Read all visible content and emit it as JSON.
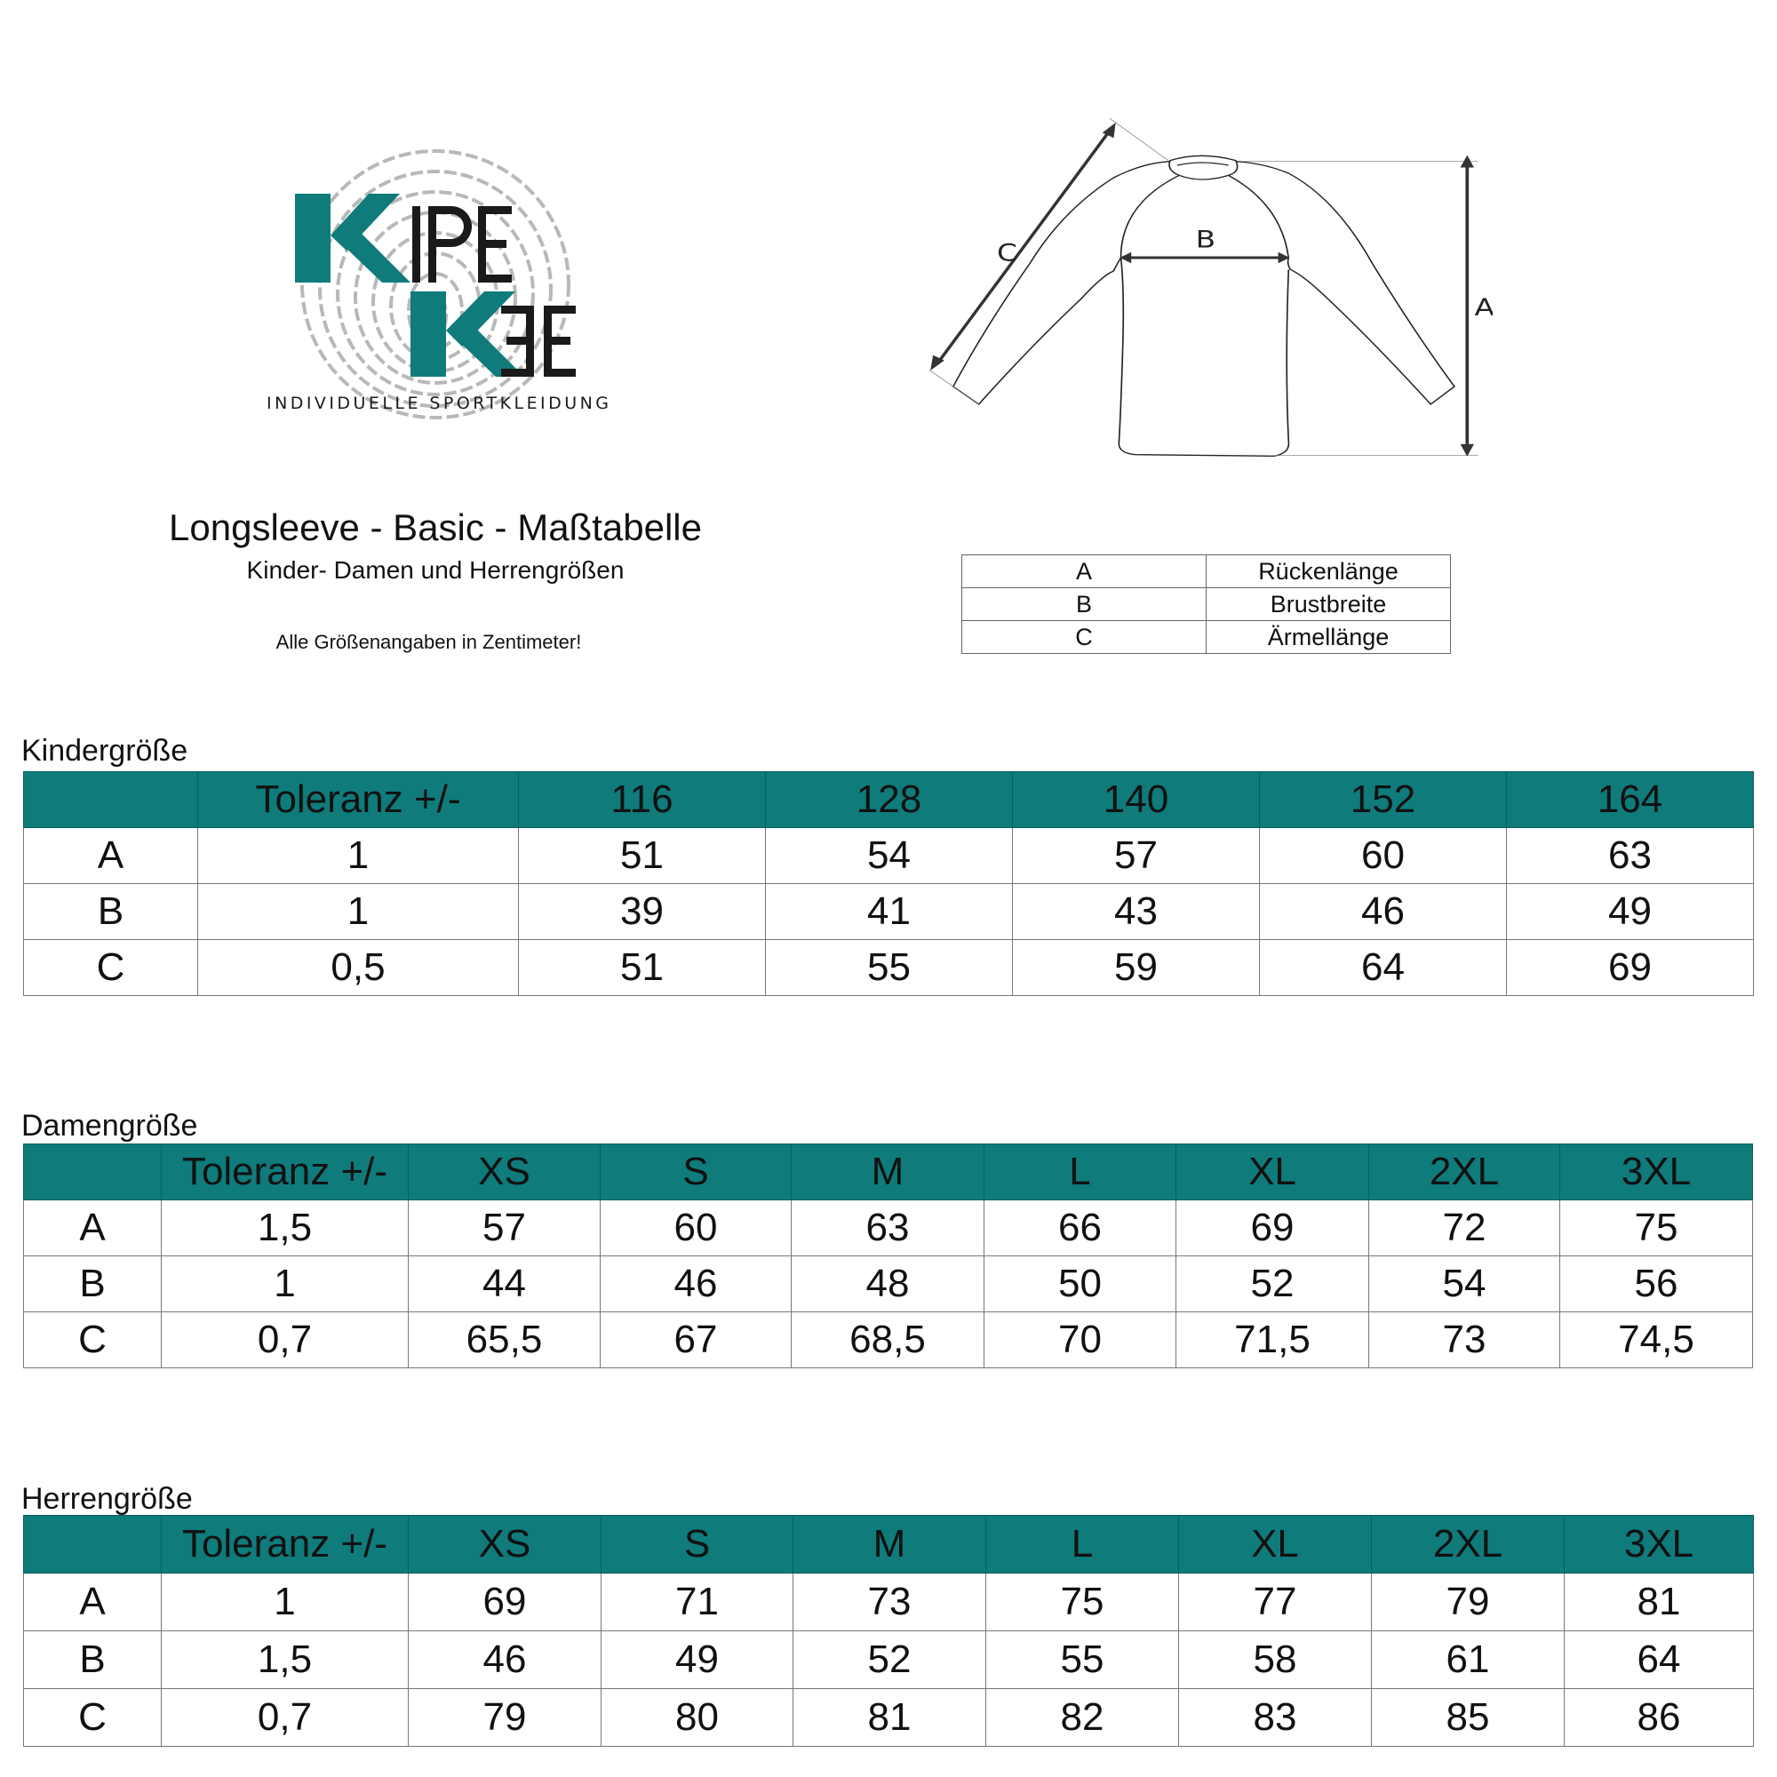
{
  "logo": {
    "line1": "KIPE",
    "line2": "KEE",
    "tagline": "INDIVIDUELLE SPORTKLEIDUNG",
    "colors": {
      "teal": "#0f7b7b",
      "dark": "#1a1a1a",
      "fingerprint": "#b8b8b8"
    }
  },
  "header": {
    "title": "Longsleeve - Basic - Maßtabelle",
    "subtitle": "Kinder- Damen und Herrengrößen",
    "note": "Alle Größenangaben in Zentimeter!"
  },
  "diagram": {
    "labels": {
      "a": "A",
      "b": "B",
      "c": "C"
    }
  },
  "legend": [
    {
      "key": "A",
      "label": "Rückenlänge"
    },
    {
      "key": "B",
      "label": "Brustbreite"
    },
    {
      "key": "C",
      "label": "Ärmellänge"
    }
  ],
  "accent": "#0f7b7b",
  "tables": [
    {
      "title": "Kindergröße",
      "headers": [
        "",
        "Toleranz +/-",
        "116",
        "128",
        "140",
        "152",
        "164"
      ],
      "rows": [
        [
          "A",
          "1",
          "51",
          "54",
          "57",
          "60",
          "63"
        ],
        [
          "B",
          "1",
          "39",
          "41",
          "43",
          "46",
          "49"
        ],
        [
          "C",
          "0,5",
          "51",
          "55",
          "59",
          "64",
          "69"
        ]
      ]
    },
    {
      "title": "Damengröße",
      "headers": [
        "",
        "Toleranz +/-",
        "XS",
        "S",
        "M",
        "L",
        "XL",
        "2XL",
        "3XL"
      ],
      "rows": [
        [
          "A",
          "1,5",
          "57",
          "60",
          "63",
          "66",
          "69",
          "72",
          "75"
        ],
        [
          "B",
          "1",
          "44",
          "46",
          "48",
          "50",
          "52",
          "54",
          "56"
        ],
        [
          "C",
          "0,7",
          "65,5",
          "67",
          "68,5",
          "70",
          "71,5",
          "73",
          "74,5"
        ]
      ]
    },
    {
      "title": "Herrengröße",
      "headers": [
        "",
        "Toleranz +/-",
        "XS",
        "S",
        "M",
        "L",
        "XL",
        "2XL",
        "3XL"
      ],
      "rows": [
        [
          "A",
          "1",
          "69",
          "71",
          "73",
          "75",
          "77",
          "79",
          "81"
        ],
        [
          "B",
          "1,5",
          "46",
          "49",
          "52",
          "55",
          "58",
          "61",
          "64"
        ],
        [
          "C",
          "0,7",
          "79",
          "80",
          "81",
          "82",
          "83",
          "85",
          "86"
        ]
      ]
    }
  ]
}
